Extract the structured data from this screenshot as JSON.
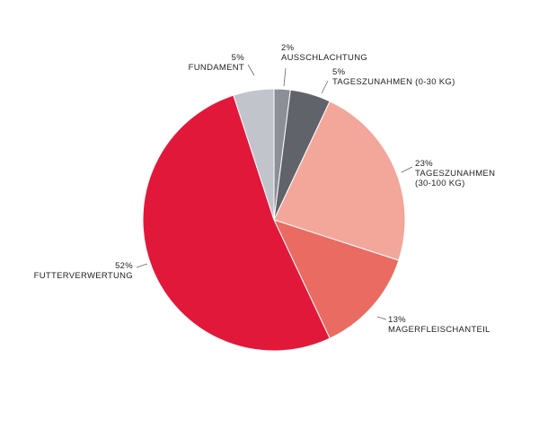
{
  "chart_data": {
    "type": "pie",
    "categories": [
      "AUSSCHLACHTUNG",
      "TAGESZUNAHMEN (0-30 KG)",
      "TAGESZUNAHMEN\n(30-100 KG)",
      "MAGERFLEISCHANTEIL",
      "FUTTERVERWERTUNG",
      "FUNDAMENT"
    ],
    "values": [
      2,
      5,
      23,
      13,
      52,
      5
    ],
    "value_labels": [
      "2%",
      "5%",
      "23%",
      "13%",
      "52%",
      "5%"
    ],
    "colors": [
      "#8c8f95",
      "#60646a",
      "#f3a69a",
      "#ea6b61",
      "#e2183a",
      "#c1c4cb"
    ]
  }
}
